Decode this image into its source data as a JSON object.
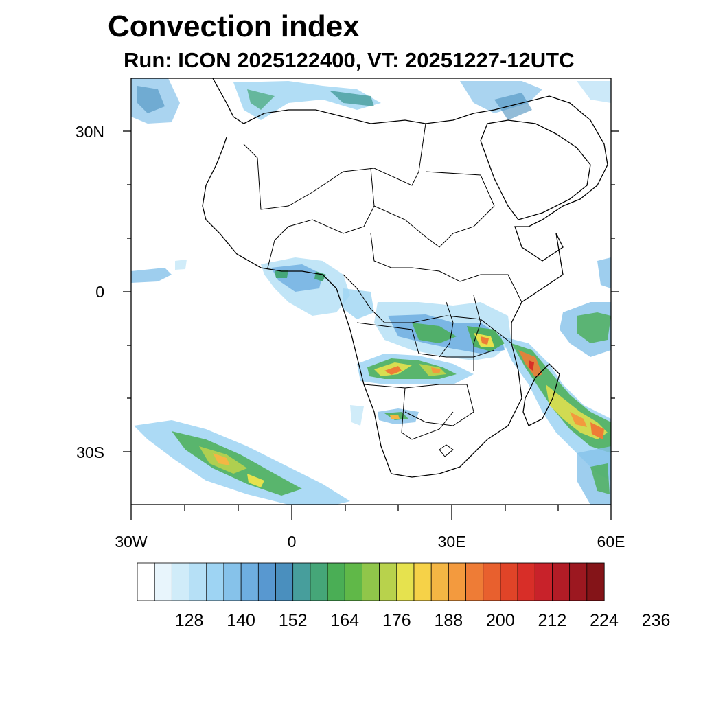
{
  "title": "Convection index",
  "subtitle": "Run: ICON 2025122400,  VT: 20251227-12UTC",
  "y_axis_labels": [
    "30N",
    "0",
    "30S"
  ],
  "x_axis_labels": [
    "30W",
    "0",
    "30E",
    "60E"
  ],
  "colorbar": {
    "colors": [
      "#ffffff",
      "#e8f5fc",
      "#d0ecf9",
      "#b6e0f6",
      "#9ed4f3",
      "#86c2ea",
      "#6eaee0",
      "#5898d0",
      "#4a8fbe",
      "#479e9c",
      "#45a678",
      "#4aae55",
      "#60b848",
      "#90c64a",
      "#b8d24c",
      "#e6e24e",
      "#f6d248",
      "#f4b644",
      "#f39a3e",
      "#ee7c36",
      "#e8602e",
      "#e04428",
      "#d82e28",
      "#c8222a",
      "#b21c26",
      "#9c1820",
      "#841418"
    ],
    "labels": [
      "128",
      "140",
      "152",
      "164",
      "176",
      "188",
      "200",
      "212",
      "224",
      "236"
    ]
  }
}
